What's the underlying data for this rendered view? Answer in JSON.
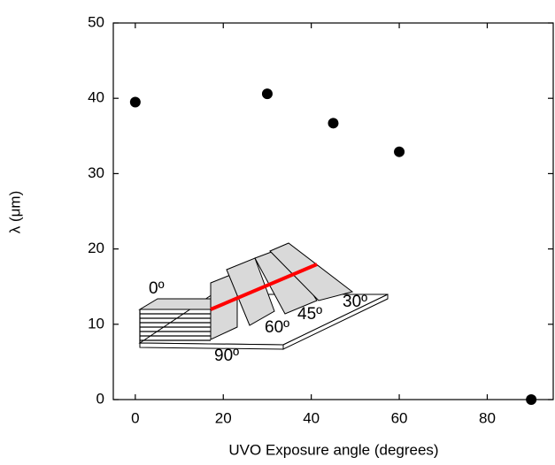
{
  "chart_data": {
    "type": "scatter",
    "x_label": "UVO Exposure angle (degrees)",
    "y_label": "λ (μm)",
    "x": [
      0,
      30,
      45,
      60,
      90
    ],
    "values": [
      39.5,
      40.6,
      36.7,
      32.9,
      0
    ],
    "color": "#000000",
    "xlim": [
      -5,
      95
    ],
    "xticks": [
      0,
      20,
      40,
      60,
      80
    ],
    "ylim": [
      0,
      50
    ],
    "yticks": [
      0,
      10,
      20,
      30,
      40,
      50
    ],
    "grid": false,
    "annotations": [
      "0º",
      "60º",
      "45º",
      "30º",
      "90º"
    ]
  }
}
